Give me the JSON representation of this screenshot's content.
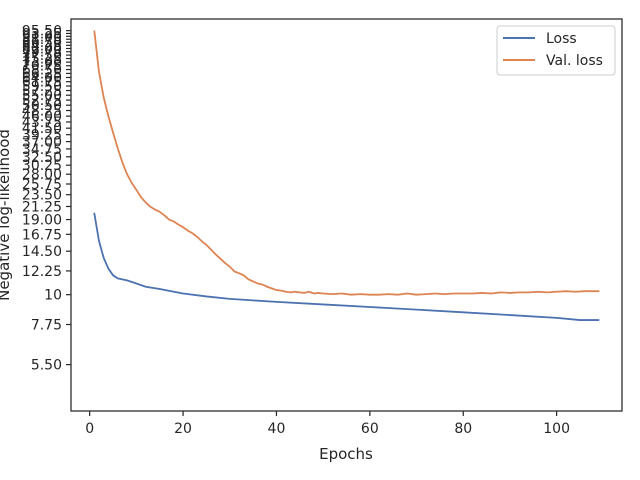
{
  "chart_data": {
    "type": "line",
    "title": "",
    "xlabel": "Epochs",
    "ylabel": "Negative log-likelihood",
    "xlim": [
      -4,
      114
    ],
    "ylim": [
      3.7,
      105.5
    ],
    "y_scale": "log",
    "grid": false,
    "legend_position": "top-right",
    "x_ticks": [
      0,
      20,
      40,
      60,
      80,
      100
    ],
    "y_ticks": [
      5.5,
      7.75,
      10,
      12.25,
      14.5,
      16.75,
      19,
      21.25,
      23.5,
      25.75,
      28,
      30.25,
      32.5,
      34.75,
      37,
      39.25,
      41.5,
      43.75,
      46,
      48.25,
      50.5,
      52.75,
      55,
      57.25,
      59.5,
      61.75,
      64,
      66.25,
      68.5,
      70.75,
      73,
      75.25,
      77.5,
      79.75,
      82,
      84.25,
      86.5,
      88.75,
      91,
      93.25,
      95.5
    ],
    "y_tick_labels": [
      "5.50",
      "7.75",
      "10",
      "12.25",
      "14.50",
      "16.75",
      "19.00",
      "21.25",
      "23.50",
      "25.75",
      "28.00",
      "30.25",
      "32.50",
      "34.75",
      "37.00",
      "39.25",
      "41.50",
      "43.75",
      "46.00",
      "48.25",
      "50.50",
      "52.75",
      "55.00",
      "57.25",
      "59.50",
      "61.75",
      "64.00",
      "66.25",
      "68.50",
      "70.75",
      "73.00",
      "75.25",
      "77.50",
      "79.75",
      "82.00",
      "84.25",
      "86.50",
      "88.75",
      "91.00",
      "93.25",
      "95.50"
    ],
    "series": [
      {
        "name": "Loss",
        "color": "#4c72b0",
        "x": [
          1,
          2,
          3,
          4,
          5,
          6,
          8,
          10,
          12,
          15,
          20,
          25,
          30,
          40,
          50,
          60,
          70,
          80,
          90,
          100,
          105,
          109
        ],
        "y": [
          20,
          15.8,
          13.7,
          12.5,
          11.8,
          11.5,
          11.3,
          11.0,
          10.7,
          10.5,
          10.1,
          9.85,
          9.65,
          9.4,
          9.2,
          9.0,
          8.8,
          8.6,
          8.4,
          8.2,
          8.05,
          8.05
        ]
      },
      {
        "name": "Val. loss",
        "color": "#dd8452",
        "x": [
          1,
          2,
          3,
          4,
          5,
          6,
          7,
          8,
          9,
          10,
          11,
          12,
          13,
          14,
          15,
          16,
          17,
          18,
          19,
          20,
          21,
          22,
          23,
          24,
          25,
          26,
          27,
          28,
          29,
          30,
          31,
          32,
          33,
          34,
          35,
          36,
          37,
          38,
          39,
          40,
          41,
          42,
          43,
          44,
          45,
          46,
          47,
          48,
          49,
          50,
          52,
          54,
          56,
          58,
          60,
          62,
          64,
          66,
          68,
          70,
          72,
          74,
          76,
          78,
          80,
          82,
          84,
          86,
          88,
          90,
          92,
          94,
          96,
          98,
          100,
          102,
          104,
          106,
          109
        ],
        "y": [
          95,
          67,
          54,
          46,
          40,
          35,
          31,
          28,
          26,
          24.5,
          23,
          22,
          21.2,
          20.7,
          20.3,
          19.7,
          19.0,
          18.7,
          18.2,
          17.8,
          17.3,
          16.9,
          16.4,
          15.8,
          15.3,
          14.7,
          14.1,
          13.6,
          13.1,
          12.7,
          12.2,
          12.0,
          11.8,
          11.4,
          11.2,
          11.0,
          10.9,
          10.7,
          10.55,
          10.4,
          10.35,
          10.25,
          10.2,
          10.25,
          10.2,
          10.15,
          10.25,
          10.1,
          10.15,
          10.1,
          10.05,
          10.1,
          10.0,
          10.05,
          10.0,
          10.0,
          10.05,
          10.0,
          10.1,
          10.0,
          10.05,
          10.1,
          10.05,
          10.1,
          10.1,
          10.1,
          10.15,
          10.1,
          10.2,
          10.15,
          10.2,
          10.2,
          10.25,
          10.2,
          10.25,
          10.3,
          10.25,
          10.3,
          10.3
        ]
      }
    ]
  }
}
